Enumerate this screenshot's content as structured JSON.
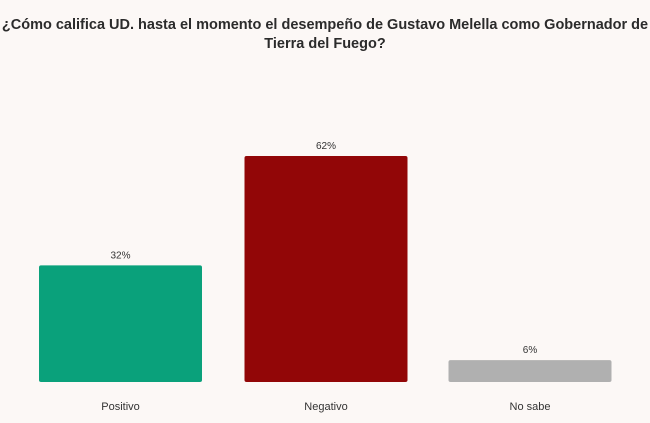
{
  "chart_data": {
    "type": "bar",
    "title_lines": [
      "¿Cómo califica UD. hasta el momento el desempeño de Gustavo Melella como Gobernador de",
      "Tierra del Fuego?"
    ],
    "categories": [
      "Positivo",
      "Negativo",
      "No sabe"
    ],
    "values": [
      32,
      62,
      6
    ],
    "data_labels": [
      "32%",
      "62%",
      "6%"
    ],
    "colors": [
      "#0aa17b",
      "#920607",
      "#b0b0b0"
    ],
    "ylim": [
      0,
      62
    ],
    "grid": false,
    "legend": "none"
  }
}
